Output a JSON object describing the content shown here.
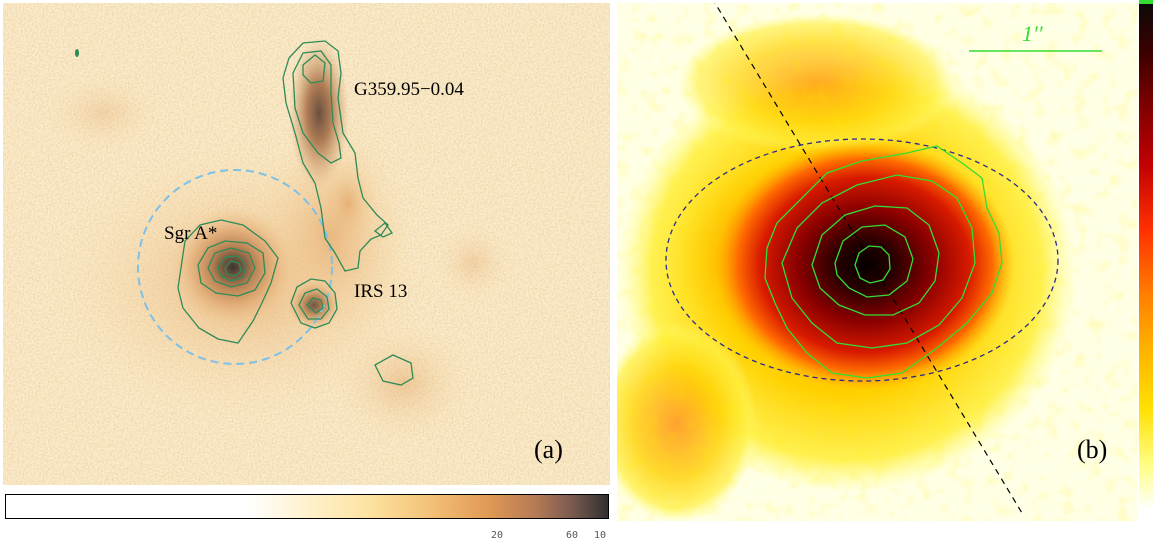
{
  "panel_a": {
    "labels": {
      "g359": "G359.95−0.04",
      "sgra": "Sgr A*",
      "irs13": "IRS 13"
    },
    "panel_letter": "(a)",
    "colorbar_ticks": [
      "20",
      "60",
      "10"
    ]
  },
  "panel_b": {
    "scale_label": "1′′",
    "panel_letter": "(b)"
  },
  "colors": {
    "contour_a": "#2e8b57",
    "circle_a": "#7ec0e6",
    "contour_b": "#33dd33",
    "ellipse_b": "#2a2a8a",
    "scale_bar": "#33dd33"
  }
}
